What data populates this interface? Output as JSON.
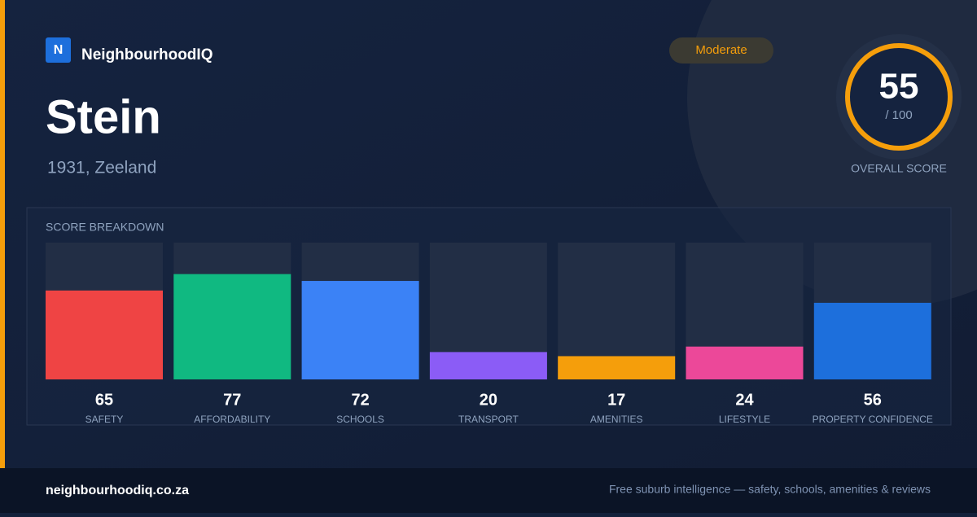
{
  "brand": {
    "logo": "N",
    "name": "NeighbourhoodIQ"
  },
  "place": {
    "name": "Stein",
    "location": "1931, Zeeland"
  },
  "badge": "Moderate",
  "overall": {
    "score": "55",
    "max": "/ 100",
    "label": "OVERALL SCORE"
  },
  "chart_data": {
    "type": "bar",
    "title": "SCORE BREAKDOWN",
    "categories": [
      "SAFETY",
      "AFFORDABILITY",
      "SCHOOLS",
      "TRANSPORT",
      "AMENITIES",
      "LIFESTYLE",
      "PROPERTY CONFIDENCE"
    ],
    "values": [
      65,
      77,
      72,
      20,
      17,
      24,
      56
    ],
    "colors": [
      "#ef4444",
      "#10b981",
      "#3b82f6",
      "#8b5cf6",
      "#f59e0b",
      "#ec4899",
      "#1d6fdc"
    ],
    "ylim": [
      0,
      100
    ]
  },
  "footer": {
    "url": "neighbourhoodiq.co.za",
    "tagline": "Free suburb intelligence — safety, schools, amenities & reviews"
  }
}
